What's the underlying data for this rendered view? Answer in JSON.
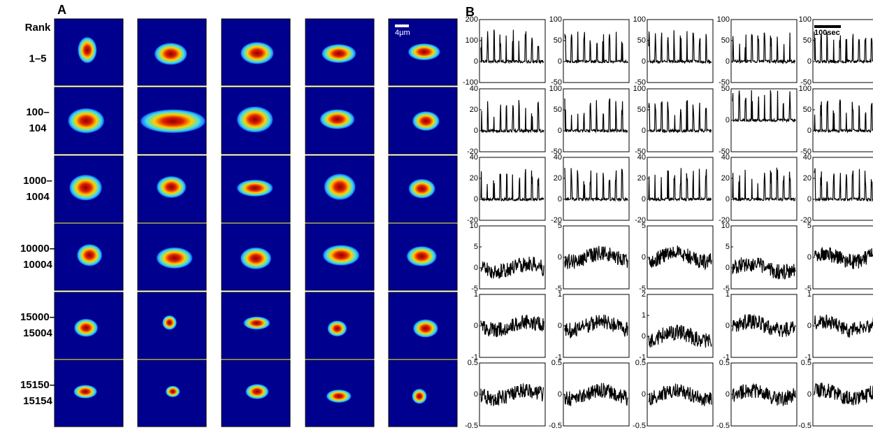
{
  "panel_a": {
    "label": "A",
    "header": "Rank",
    "rows": [
      [
        "1–5"
      ],
      [
        "100–",
        "104"
      ],
      [
        "1000–",
        "1004"
      ],
      [
        "10000–",
        "10004"
      ],
      [
        "15000–",
        "15004"
      ],
      [
        "15150–",
        "15154"
      ]
    ],
    "scale_bar": "4μm"
  },
  "panel_b": {
    "label": "B",
    "scale_bar": "100sec",
    "plots": [
      [
        {
          "yticks": [
            -100,
            0,
            100,
            200
          ]
        },
        {
          "yticks": [
            -50,
            0,
            50,
            100
          ]
        },
        {
          "yticks": [
            -50,
            0,
            50,
            100
          ]
        },
        {
          "yticks": [
            -50,
            0,
            50,
            100
          ]
        },
        {
          "yticks": [
            -50,
            0,
            50,
            100
          ]
        }
      ],
      [
        {
          "yticks": [
            -20,
            0,
            20,
            40
          ]
        },
        {
          "yticks": [
            -50,
            0,
            50,
            100
          ]
        },
        {
          "yticks": [
            -50,
            0,
            50,
            100
          ]
        },
        {
          "yticks": [
            -50,
            0,
            50
          ]
        },
        {
          "yticks": [
            -50,
            0,
            50,
            100
          ]
        }
      ],
      [
        {
          "yticks": [
            -20,
            0,
            20,
            40
          ]
        },
        {
          "yticks": [
            -20,
            0,
            20,
            40
          ]
        },
        {
          "yticks": [
            -20,
            0,
            20,
            40
          ]
        },
        {
          "yticks": [
            -20,
            0,
            20,
            40
          ]
        },
        {
          "yticks": [
            -20,
            0,
            20,
            40
          ]
        }
      ],
      [
        {
          "yticks": [
            -5,
            0,
            5,
            10
          ]
        },
        {
          "yticks": [
            -5,
            0,
            5
          ]
        },
        {
          "yticks": [
            -5,
            0,
            5
          ]
        },
        {
          "yticks": [
            -5,
            0,
            5,
            10
          ]
        },
        {
          "yticks": [
            -5,
            0,
            5
          ]
        }
      ],
      [
        {
          "yticks": [
            -1,
            0,
            1
          ]
        },
        {
          "yticks": [
            -1,
            0,
            1
          ]
        },
        {
          "yticks": [
            -1,
            0,
            1,
            2
          ]
        },
        {
          "yticks": [
            -1,
            0,
            1
          ]
        },
        {
          "yticks": [
            -1,
            0,
            1
          ]
        }
      ],
      [
        {
          "yticks": [
            -0.5,
            0,
            0.5
          ]
        },
        {
          "yticks": [
            -0.5,
            0,
            0.5
          ]
        },
        {
          "yticks": [
            -0.5,
            0,
            0.5
          ]
        },
        {
          "yticks": [
            -0.5,
            0,
            0.5
          ]
        },
        {
          "yticks": [
            -0.5,
            0,
            0.5
          ]
        }
      ]
    ]
  }
}
